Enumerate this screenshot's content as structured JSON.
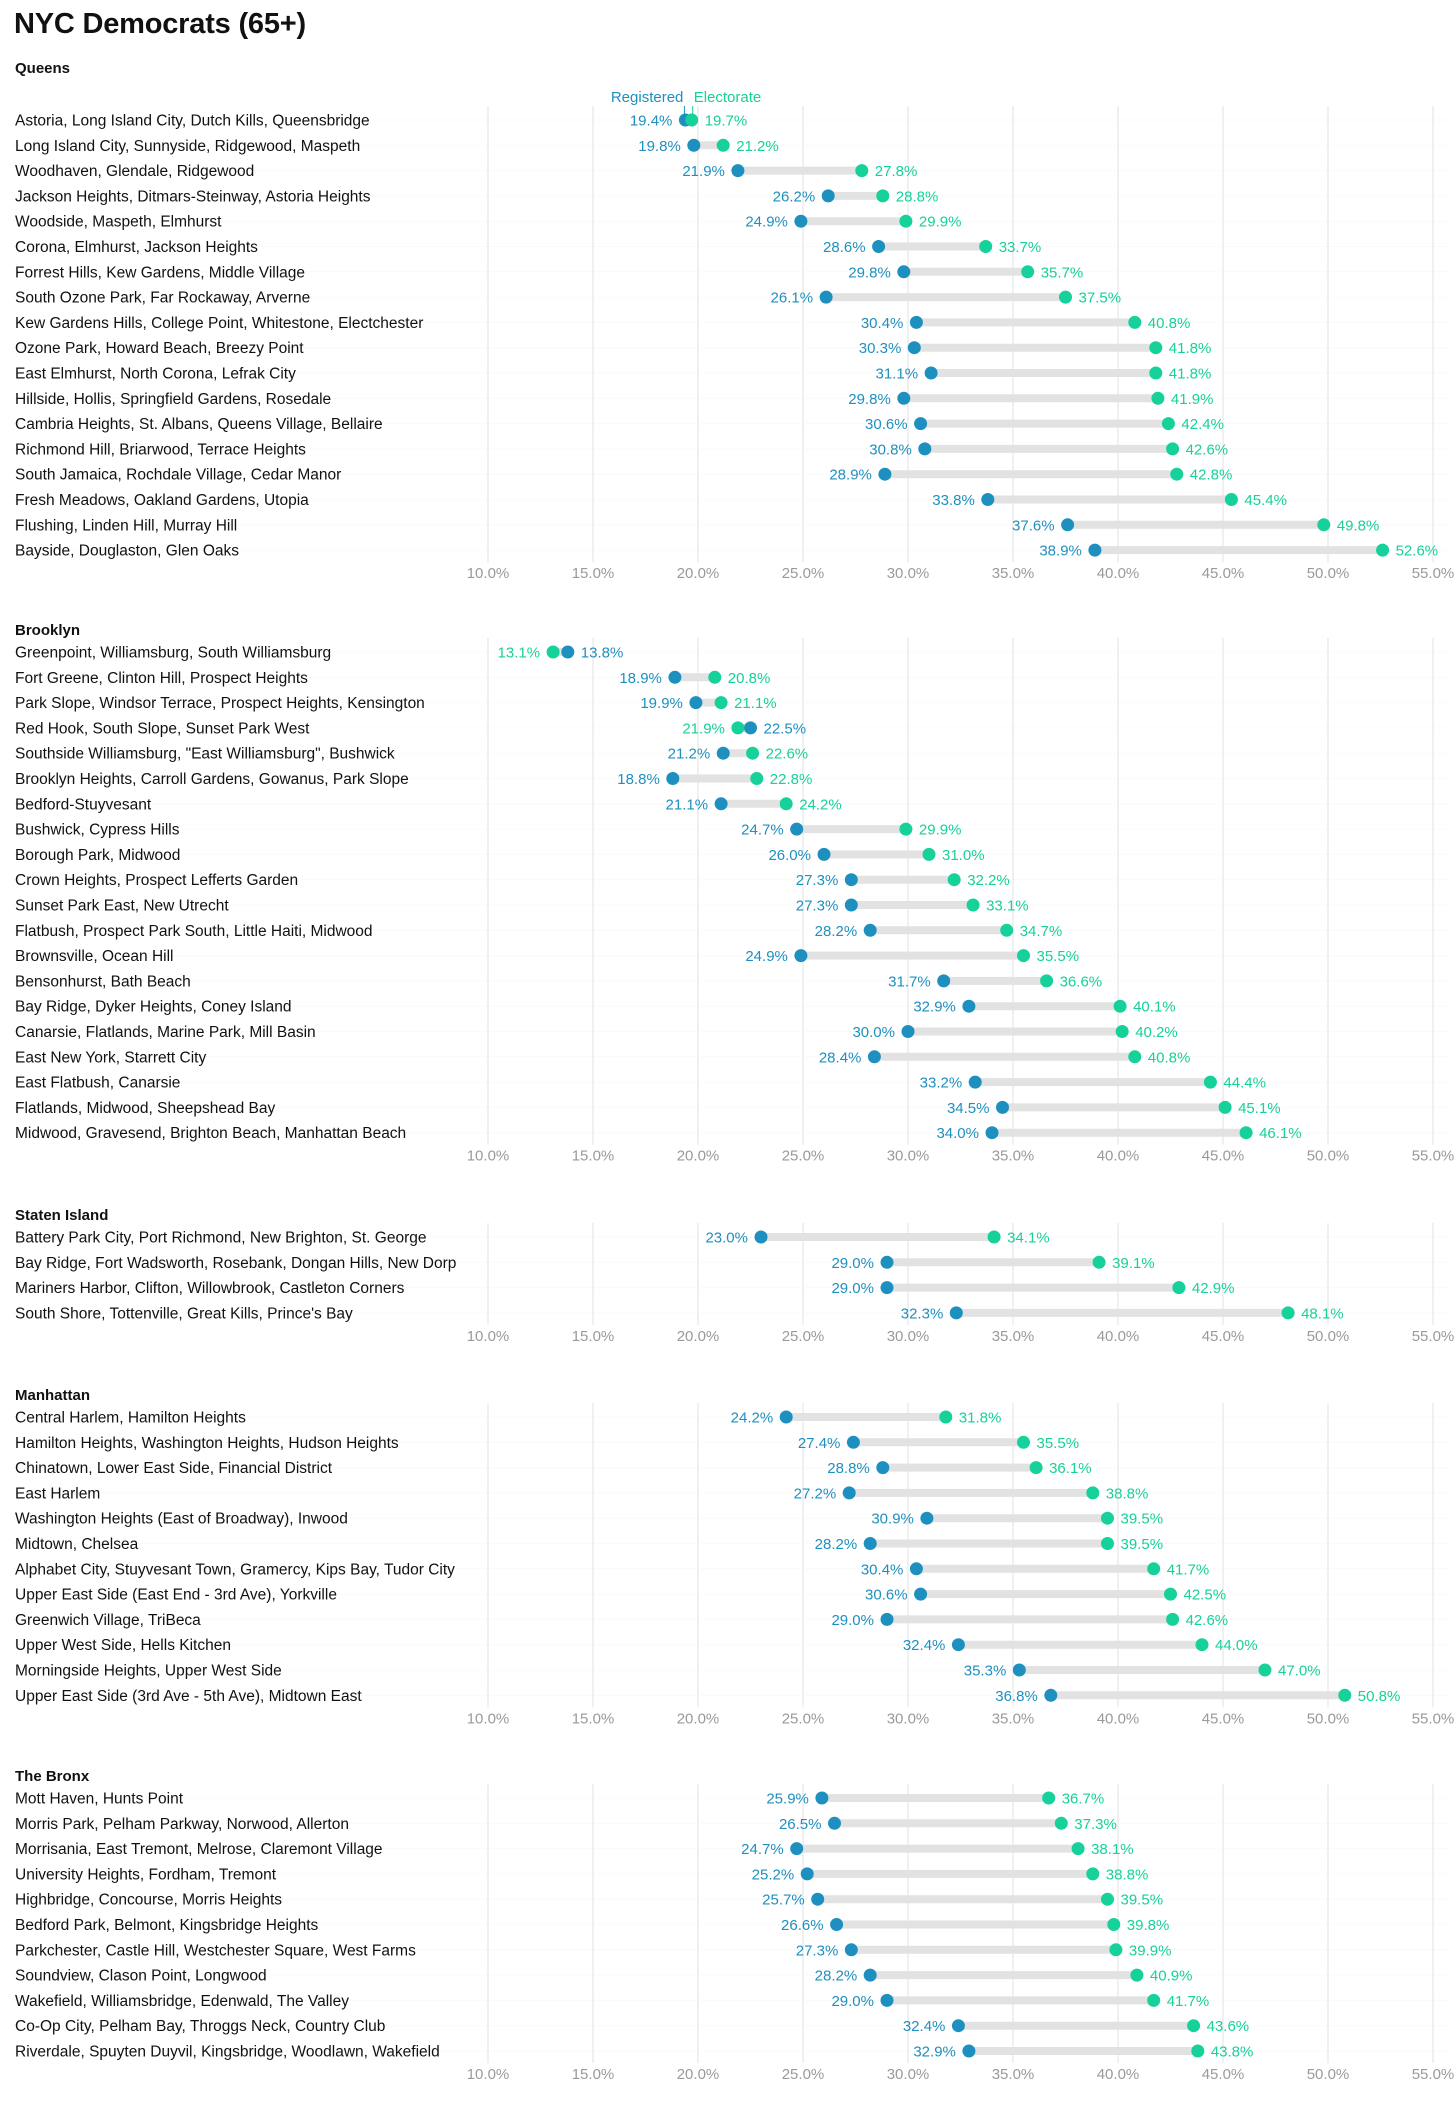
{
  "title": "NYC Democrats (65+)",
  "colors": {
    "registered": "#1e90bf",
    "electorate": "#16d19a",
    "connector": "#e2e2e2",
    "grid": "#e6e6e6",
    "tick_text": "#9a9a9a"
  },
  "legend": {
    "registered": "Registered",
    "electorate": "Electorate"
  },
  "chart_data": [
    {
      "type": "dumbbell",
      "title": "Queens",
      "xlim": [
        10,
        55
      ],
      "x_ticks": [
        "10.0%",
        "15.0%",
        "20.0%",
        "25.0%",
        "30.0%",
        "35.0%",
        "40.0%",
        "45.0%",
        "50.0%",
        "55.0%"
      ],
      "series": [
        {
          "name": "Registered"
        },
        {
          "name": "Electorate"
        }
      ],
      "rows": [
        {
          "label": "Astoria, Long Island City, Dutch Kills, Queensbridge",
          "registered": 19.4,
          "electorate": 19.7
        },
        {
          "label": "Long Island City, Sunnyside, Ridgewood, Maspeth",
          "registered": 19.8,
          "electorate": 21.2
        },
        {
          "label": "Woodhaven, Glendale, Ridgewood",
          "registered": 21.9,
          "electorate": 27.8
        },
        {
          "label": "Jackson Heights, Ditmars-Steinway, Astoria Heights",
          "registered": 26.2,
          "electorate": 28.8
        },
        {
          "label": "Woodside, Maspeth, Elmhurst",
          "registered": 24.9,
          "electorate": 29.9
        },
        {
          "label": "Corona, Elmhurst, Jackson Heights",
          "registered": 28.6,
          "electorate": 33.7
        },
        {
          "label": "Forrest Hills, Kew Gardens, Middle Village",
          "registered": 29.8,
          "electorate": 35.7
        },
        {
          "label": "South Ozone Park, Far Rockaway, Arverne",
          "registered": 26.1,
          "electorate": 37.5
        },
        {
          "label": "Kew Gardens Hills, College Point, Whitestone, Electchester",
          "registered": 30.4,
          "electorate": 40.8
        },
        {
          "label": "Ozone Park, Howard Beach, Breezy Point",
          "registered": 30.3,
          "electorate": 41.8
        },
        {
          "label": "East Elmhurst, North Corona, Lefrak City",
          "registered": 31.1,
          "electorate": 41.8
        },
        {
          "label": "Hillside, Hollis, Springfield Gardens, Rosedale",
          "registered": 29.8,
          "electorate": 41.9
        },
        {
          "label": "Cambria Heights, St. Albans, Queens Village, Bellaire",
          "registered": 30.6,
          "electorate": 42.4
        },
        {
          "label": "Richmond Hill, Briarwood, Terrace Heights",
          "registered": 30.8,
          "electorate": 42.6
        },
        {
          "label": "South Jamaica, Rochdale Village, Cedar Manor",
          "registered": 28.9,
          "electorate": 42.8
        },
        {
          "label": "Fresh Meadows, Oakland Gardens, Utopia",
          "registered": 33.8,
          "electorate": 45.4
        },
        {
          "label": "Flushing, Linden Hill, Murray Hill",
          "registered": 37.6,
          "electorate": 49.8
        },
        {
          "label": "Bayside, Douglaston, Glen Oaks",
          "registered": 38.9,
          "electorate": 52.6
        }
      ]
    },
    {
      "type": "dumbbell",
      "title": "Brooklyn",
      "xlim": [
        10,
        55
      ],
      "x_ticks": [
        "10.0%",
        "15.0%",
        "20.0%",
        "25.0%",
        "30.0%",
        "35.0%",
        "40.0%",
        "45.0%",
        "50.0%",
        "55.0%"
      ],
      "series": [
        {
          "name": "Registered"
        },
        {
          "name": "Electorate"
        }
      ],
      "rows": [
        {
          "label": "Greenpoint, Williamsburg, South Williamsburg",
          "registered": 13.8,
          "electorate": 13.1
        },
        {
          "label": "Fort Greene, Clinton Hill, Prospect Heights",
          "registered": 18.9,
          "electorate": 20.8
        },
        {
          "label": "Park Slope, Windsor Terrace, Prospect Heights, Kensington",
          "registered": 19.9,
          "electorate": 21.1
        },
        {
          "label": "Red Hook, South Slope, Sunset Park West",
          "registered": 22.5,
          "electorate": 21.9
        },
        {
          "label": "Southside Williamsburg, \"East Williamsburg\", Bushwick",
          "registered": 21.2,
          "electorate": 22.6
        },
        {
          "label": "Brooklyn Heights, Carroll Gardens, Gowanus, Park Slope",
          "registered": 18.8,
          "electorate": 22.8
        },
        {
          "label": "Bedford-Stuyvesant",
          "registered": 21.1,
          "electorate": 24.2
        },
        {
          "label": "Bushwick, Cypress Hills",
          "registered": 24.7,
          "electorate": 29.9
        },
        {
          "label": "Borough Park, Midwood",
          "registered": 26.0,
          "electorate": 31.0
        },
        {
          "label": "Crown Heights, Prospect Lefferts Garden",
          "registered": 27.3,
          "electorate": 32.2
        },
        {
          "label": "Sunset Park East, New Utrecht",
          "registered": 27.3,
          "electorate": 33.1
        },
        {
          "label": "Flatbush, Prospect Park South, Little Haiti, Midwood",
          "registered": 28.2,
          "electorate": 34.7
        },
        {
          "label": "Brownsville, Ocean Hill",
          "registered": 24.9,
          "electorate": 35.5
        },
        {
          "label": "Bensonhurst, Bath Beach",
          "registered": 31.7,
          "electorate": 36.6
        },
        {
          "label": "Bay Ridge, Dyker Heights, Coney Island",
          "registered": 32.9,
          "electorate": 40.1
        },
        {
          "label": "Canarsie, Flatlands, Marine Park, Mill Basin",
          "registered": 30.0,
          "electorate": 40.2
        },
        {
          "label": "East New York, Starrett City",
          "registered": 28.4,
          "electorate": 40.8
        },
        {
          "label": "East Flatbush, Canarsie",
          "registered": 33.2,
          "electorate": 44.4
        },
        {
          "label": "Flatlands, Midwood, Sheepshead Bay",
          "registered": 34.5,
          "electorate": 45.1
        },
        {
          "label": "Midwood, Gravesend, Brighton Beach, Manhattan Beach",
          "registered": 34.0,
          "electorate": 46.1
        }
      ]
    },
    {
      "type": "dumbbell",
      "title": "Staten Island",
      "xlim": [
        10,
        55
      ],
      "x_ticks": [
        "10.0%",
        "15.0%",
        "20.0%",
        "25.0%",
        "30.0%",
        "35.0%",
        "40.0%",
        "45.0%",
        "50.0%",
        "55.0%"
      ],
      "series": [
        {
          "name": "Registered"
        },
        {
          "name": "Electorate"
        }
      ],
      "rows": [
        {
          "label": "Battery Park City, Port Richmond, New Brighton, St. George",
          "registered": 23.0,
          "electorate": 34.1
        },
        {
          "label": "Bay Ridge, Fort Wadsworth, Rosebank, Dongan Hills, New Dorp",
          "registered": 29.0,
          "electorate": 39.1
        },
        {
          "label": "Mariners Harbor, Clifton, Willowbrook, Castleton Corners",
          "registered": 29.0,
          "electorate": 42.9
        },
        {
          "label": "South Shore, Tottenville, Great Kills, Prince's Bay",
          "registered": 32.3,
          "electorate": 48.1
        }
      ]
    },
    {
      "type": "dumbbell",
      "title": "Manhattan",
      "xlim": [
        10,
        55
      ],
      "x_ticks": [
        "10.0%",
        "15.0%",
        "20.0%",
        "25.0%",
        "30.0%",
        "35.0%",
        "40.0%",
        "45.0%",
        "50.0%",
        "55.0%"
      ],
      "series": [
        {
          "name": "Registered"
        },
        {
          "name": "Electorate"
        }
      ],
      "rows": [
        {
          "label": "Central Harlem, Hamilton Heights",
          "registered": 24.2,
          "electorate": 31.8
        },
        {
          "label": "Hamilton Heights, Washington Heights, Hudson Heights",
          "registered": 27.4,
          "electorate": 35.5
        },
        {
          "label": "Chinatown, Lower East Side, Financial District",
          "registered": 28.8,
          "electorate": 36.1
        },
        {
          "label": "East Harlem",
          "registered": 27.2,
          "electorate": 38.8
        },
        {
          "label": "Washington Heights (East of Broadway), Inwood",
          "registered": 30.9,
          "electorate": 39.5
        },
        {
          "label": "Midtown, Chelsea",
          "registered": 28.2,
          "electorate": 39.5
        },
        {
          "label": "Alphabet City, Stuyvesant Town, Gramercy, Kips Bay, Tudor City",
          "registered": 30.4,
          "electorate": 41.7
        },
        {
          "label": "Upper East Side (East End - 3rd Ave), Yorkville",
          "registered": 30.6,
          "electorate": 42.5
        },
        {
          "label": "Greenwich Village, TriBeca",
          "registered": 29.0,
          "electorate": 42.6
        },
        {
          "label": "Upper West Side, Hells Kitchen",
          "registered": 32.4,
          "electorate": 44.0
        },
        {
          "label": "Morningside Heights, Upper West Side",
          "registered": 35.3,
          "electorate": 47.0
        },
        {
          "label": "Upper East Side (3rd Ave - 5th Ave), Midtown East",
          "registered": 36.8,
          "electorate": 50.8
        }
      ]
    },
    {
      "type": "dumbbell",
      "title": "The Bronx",
      "xlim": [
        10,
        55
      ],
      "x_ticks": [
        "10.0%",
        "15.0%",
        "20.0%",
        "25.0%",
        "30.0%",
        "35.0%",
        "40.0%",
        "45.0%",
        "50.0%",
        "55.0%"
      ],
      "series": [
        {
          "name": "Registered"
        },
        {
          "name": "Electorate"
        }
      ],
      "rows": [
        {
          "label": "Mott Haven, Hunts Point",
          "registered": 25.9,
          "electorate": 36.7
        },
        {
          "label": "Morris Park, Pelham Parkway, Norwood, Allerton",
          "registered": 26.5,
          "electorate": 37.3
        },
        {
          "label": "Morrisania, East Tremont, Melrose, Claremont Village",
          "registered": 24.7,
          "electorate": 38.1
        },
        {
          "label": "University Heights, Fordham, Tremont",
          "registered": 25.2,
          "electorate": 38.8
        },
        {
          "label": "Highbridge, Concourse, Morris Heights",
          "registered": 25.7,
          "electorate": 39.5
        },
        {
          "label": "Bedford Park, Belmont, Kingsbridge Heights",
          "registered": 26.6,
          "electorate": 39.8
        },
        {
          "label": "Parkchester, Castle Hill, Westchester Square, West Farms",
          "registered": 27.3,
          "electorate": 39.9
        },
        {
          "label": "Soundview, Clason Point, Longwood",
          "registered": 28.2,
          "electorate": 40.9
        },
        {
          "label": "Wakefield, Williamsbridge, Edenwald, The Valley",
          "registered": 29.0,
          "electorate": 41.7
        },
        {
          "label": "Co-Op City, Pelham Bay, Throggs Neck, Country Club",
          "registered": 32.4,
          "electorate": 43.6
        },
        {
          "label": "Riverdale, Spuyten Duyvil, Kingsbridge, Woodlawn, Wakefield",
          "registered": 32.9,
          "electorate": 43.8
        }
      ]
    }
  ]
}
